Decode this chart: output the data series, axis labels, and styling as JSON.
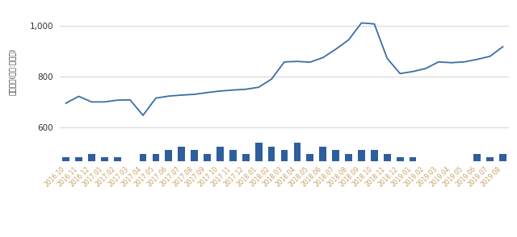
{
  "labels": [
    "2016.10",
    "2016.11",
    "2016.12",
    "2017.01",
    "2017.02",
    "2017.03",
    "2017.04",
    "2017.05",
    "2017.06",
    "2017.07",
    "2017.08",
    "2017.09",
    "2017.10",
    "2017.11",
    "2017.12",
    "2018.01",
    "2018.02",
    "2018.03",
    "2018.04",
    "2018.05",
    "2018.06",
    "2018.07",
    "2018.08",
    "2018.09",
    "2018.10",
    "2018.11",
    "2018.12",
    "2019.01",
    "2019.02",
    "2019.03",
    "2019.04",
    "2019.05",
    "2019.06",
    "2019.07",
    "2019.08"
  ],
  "line_values": [
    695,
    722,
    700,
    700,
    707,
    708,
    647,
    715,
    723,
    727,
    730,
    737,
    743,
    747,
    750,
    758,
    790,
    858,
    860,
    857,
    875,
    908,
    945,
    1012,
    1008,
    872,
    812,
    820,
    832,
    858,
    855,
    858,
    868,
    880,
    918
  ],
  "bar_values": [
    1,
    1,
    2,
    1,
    1,
    0,
    2,
    2,
    3,
    4,
    3,
    2,
    4,
    3,
    2,
    5,
    4,
    3,
    5,
    2,
    4,
    3,
    2,
    3,
    3,
    2,
    1,
    1,
    0,
    0,
    0,
    0,
    2,
    1,
    2
  ],
  "line_color": "#3a6ea5",
  "bar_color": "#2e5f9c",
  "ylabel_chars": [
    "원",
    "만",
    "백",
    ":",
    "위",
    "단",
    ")",
    " ",
    "(",
    "액",
    "금",
    "래",
    "거"
  ],
  "ylabel_text": "거래금액(단위:백만원)",
  "ylim_line": [
    575,
    1065
  ],
  "yticks_line": [
    600,
    800,
    1000
  ],
  "background_color": "#ffffff",
  "grid_color": "#d8d8d8",
  "tick_color": "#888888",
  "label_color": "#c8a060"
}
